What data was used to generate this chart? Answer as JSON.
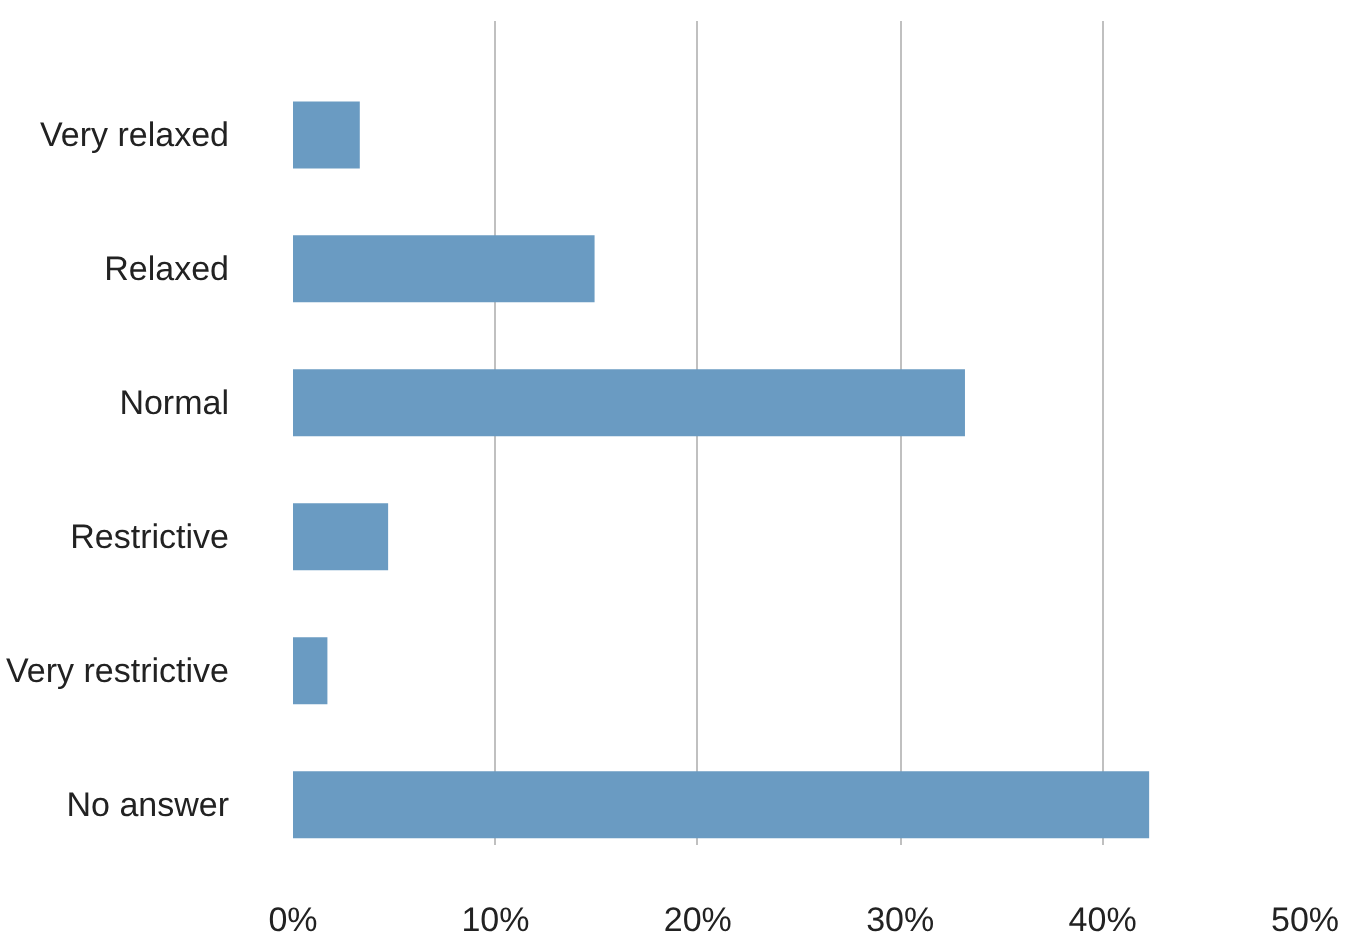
{
  "chart_data": {
    "type": "bar",
    "orientation": "horizontal",
    "categories": [
      "Very relaxed",
      "Relaxed",
      "Normal",
      "Restrictive",
      "Very restrictive",
      "No answer"
    ],
    "values": [
      3.3,
      14.9,
      33.2,
      4.7,
      1.7,
      42.3
    ],
    "color": "#6a9bc2",
    "xlim": [
      0,
      50
    ],
    "xticks": [
      {
        "value": 0,
        "label": "0%"
      },
      {
        "value": 10,
        "label": "10%"
      },
      {
        "value": 20,
        "label": "20%"
      },
      {
        "value": 30,
        "label": "30%"
      },
      {
        "value": 40,
        "label": "40%"
      },
      {
        "value": 50,
        "label": "50%"
      }
    ],
    "grid": "x"
  }
}
